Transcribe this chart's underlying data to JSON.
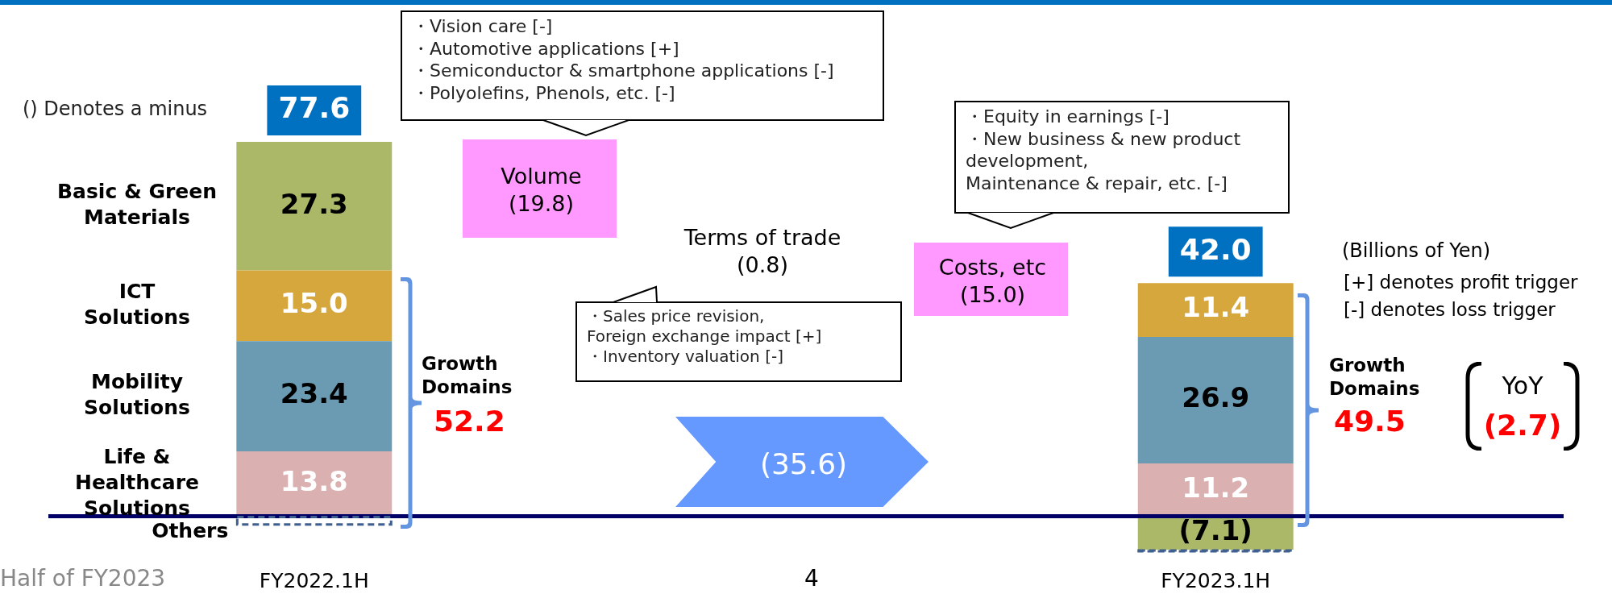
{
  "chart_data": {
    "type": "bar",
    "stacked": true,
    "legend": false,
    "tick_labels": "x",
    "categories": [
      "FY2022.1H",
      null,
      null,
      null,
      "FY2023.1H"
    ],
    "series": [
      {
        "name": "Life & Healthcare Solutions",
        "color": "#dbb0b1",
        "values": [
          13.8,
          null,
          null,
          null,
          11.2
        ],
        "value_labels": [
          "13.8",
          null,
          null,
          null,
          "11.2"
        ]
      },
      {
        "name": "Mobility Solutions",
        "color": "#6a9bb3",
        "values": [
          23.4,
          null,
          null,
          null,
          26.9
        ],
        "value_labels": [
          "23.4",
          null,
          null,
          null,
          "26.9"
        ]
      },
      {
        "name": "ICT Solutions",
        "color": "#d6a73c",
        "values": [
          15.0,
          null,
          null,
          null,
          11.4
        ],
        "value_labels": [
          "15.0",
          null,
          null,
          null,
          "11.4"
        ]
      },
      {
        "name": "Basic & Green Materials",
        "color": "#abb868",
        "values": [
          27.3,
          null,
          null,
          null,
          -7.1
        ],
        "value_labels": [
          "27.3",
          null,
          null,
          null,
          "(7.1)"
        ]
      },
      {
        "name": "Others",
        "color": "#3f5f8f",
        "line_style": "dashed",
        "values": [
          -1.9,
          null,
          null,
          null,
          -0.4
        ]
      }
    ],
    "totals": [
      "77.6",
      null,
      null,
      null,
      "42.0"
    ],
    "annotations": [
      "() Denotes a minus",
      "・Vision care [-]\n・Automotive applications [+]\n・Semiconductor &  smartphone applications [-]\n・Polyolefins, Phenols, etc. [-]",
      "Volume\n(19.8)",
      "Terms of trade\n(0.8)",
      "・Sales price revision,\n Foreign exchange impact [+]\n・Inventory valuation [-]",
      "・Equity in earnings [-]\n・New business & new product development,\nMaintenance & repair, etc. [-]",
      "Costs, etc\n(15.0)",
      "(35.6)",
      "Growth\nDomains",
      "52.2",
      "Growth\nDomains",
      "49.5",
      "(Billions of Yen)",
      "[+] denotes profit trigger",
      "[-] denotes loss trigger",
      "YoY",
      "(2.7)",
      "Half of FY2023",
      "4"
    ]
  }
}
